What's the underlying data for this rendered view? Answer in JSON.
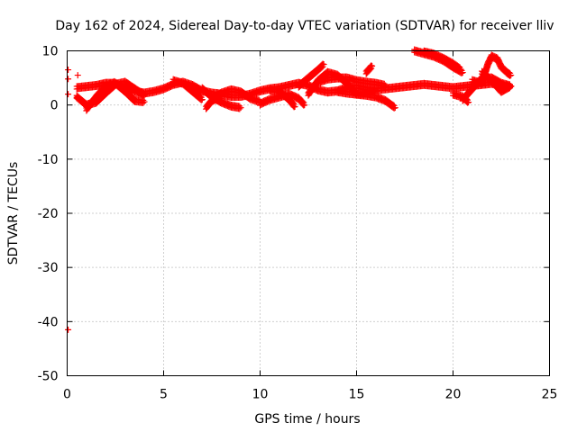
{
  "chart_data": {
    "type": "scatter",
    "title": "Day 162 of 2024, Sidereal Day-to-day VTEC variation (SDTVAR) for receiver lliv",
    "xlabel": "GPS time / hours",
    "ylabel": "SDTVAR / TECUs",
    "xlim": [
      0,
      25
    ],
    "ylim": [
      -50,
      10
    ],
    "xticks": [
      "0",
      "5",
      "10",
      "15",
      "20",
      "25"
    ],
    "yticks": [
      "10",
      "0",
      "-10",
      "-20",
      "-30",
      "-40",
      "-50"
    ],
    "grid": true,
    "marker": "+",
    "color": "#ff0000",
    "series": [
      {
        "isolated_points": [
          [
            0.05,
            6.5
          ],
          [
            0.05,
            4.8
          ],
          [
            0.05,
            2.0
          ],
          [
            0.55,
            5.5
          ],
          [
            0.5,
            1.4
          ],
          [
            0.05,
            -41.5
          ]
        ]
      },
      {
        "tracks": [
          [
            [
              0.5,
              3.2
            ],
            [
              1.0,
              3.4
            ],
            [
              1.5,
              3.6
            ],
            [
              2.0,
              4.0
            ],
            [
              2.5,
              4.0
            ],
            [
              3.0,
              3.2
            ],
            [
              3.5,
              2.5
            ],
            [
              4.0,
              2.2
            ],
            [
              4.5,
              2.5
            ],
            [
              5.0,
              3.0
            ],
            [
              5.5,
              3.8
            ],
            [
              6.0,
              4.2
            ],
            [
              6.5,
              3.6
            ],
            [
              7.0,
              2.6
            ],
            [
              7.5,
              2.2
            ],
            [
              8.0,
              2.0
            ],
            [
              8.5,
              1.6
            ],
            [
              9.0,
              1.6
            ],
            [
              9.5,
              2.0
            ],
            [
              10.0,
              2.6
            ],
            [
              10.5,
              3.0
            ],
            [
              11.0,
              3.2
            ],
            [
              11.5,
              3.6
            ],
            [
              12.0,
              4.0
            ],
            [
              12.5,
              3.6
            ],
            [
              13.0,
              2.8
            ],
            [
              13.5,
              2.4
            ],
            [
              14.0,
              2.6
            ],
            [
              14.5,
              3.2
            ],
            [
              15.0,
              3.4
            ],
            [
              15.5,
              3.0
            ],
            [
              16.0,
              2.8
            ],
            [
              16.5,
              3.0
            ],
            [
              17.0,
              3.2
            ],
            [
              17.5,
              3.4
            ],
            [
              18.0,
              3.6
            ],
            [
              18.5,
              3.8
            ],
            [
              19.0,
              3.6
            ],
            [
              19.5,
              3.4
            ],
            [
              20.0,
              3.2
            ],
            [
              20.5,
              3.4
            ],
            [
              21.0,
              3.6
            ],
            [
              21.5,
              3.8
            ],
            [
              22.0,
              4.0
            ],
            [
              22.5,
              3.6
            ],
            [
              23.0,
              3.4
            ]
          ],
          [
            [
              0.5,
              1.5
            ],
            [
              1.0,
              0.0
            ],
            [
              1.5,
              0.5
            ],
            [
              2.0,
              2.2
            ],
            [
              2.5,
              3.8
            ],
            [
              3.0,
              4.2
            ],
            [
              3.5,
              3.0
            ],
            [
              4.0,
              1.8
            ]
          ],
          [
            [
              1.0,
              -0.8
            ],
            [
              1.5,
              1.5
            ],
            [
              2.0,
              3.5
            ],
            [
              2.5,
              4.2
            ]
          ],
          [
            [
              2.5,
              4.0
            ],
            [
              3.0,
              2.5
            ],
            [
              3.5,
              0.8
            ],
            [
              4.0,
              0.6
            ]
          ],
          [
            [
              5.5,
              4.5
            ],
            [
              6.0,
              4.0
            ],
            [
              6.5,
              2.5
            ],
            [
              7.0,
              1.0
            ]
          ],
          [
            [
              7.0,
              3.0
            ],
            [
              7.5,
              1.5
            ],
            [
              8.0,
              0.5
            ],
            [
              8.5,
              -0.2
            ],
            [
              9.0,
              -0.5
            ]
          ],
          [
            [
              7.5,
              1.2
            ],
            [
              8.0,
              2.2
            ],
            [
              8.5,
              2.8
            ],
            [
              9.0,
              2.4
            ],
            [
              9.5,
              1.2
            ],
            [
              10.0,
              0.6
            ]
          ],
          [
            [
              7.2,
              -0.5
            ],
            [
              7.5,
              0.8
            ],
            [
              8.0,
              1.5
            ]
          ],
          [
            [
              10.0,
              0.2
            ],
            [
              10.5,
              1.0
            ],
            [
              11.0,
              1.5
            ],
            [
              11.5,
              2.0
            ],
            [
              12.0,
              1.2
            ],
            [
              12.3,
              0.0
            ]
          ],
          [
            [
              10.5,
              2.8
            ],
            [
              11.0,
              2.5
            ],
            [
              11.5,
              1.0
            ],
            [
              11.8,
              -0.3
            ]
          ],
          [
            [
              12.0,
              3.5
            ],
            [
              12.5,
              5.0
            ],
            [
              13.0,
              6.5
            ],
            [
              13.3,
              7.5
            ]
          ],
          [
            [
              12.5,
              2.0
            ],
            [
              13.0,
              4.5
            ],
            [
              13.5,
              6.0
            ],
            [
              14.0,
              5.5
            ],
            [
              14.5,
              4.0
            ],
            [
              15.0,
              2.0
            ],
            [
              15.5,
              1.8
            ],
            [
              16.0,
              1.5
            ],
            [
              16.5,
              0.8
            ],
            [
              17.0,
              -0.5
            ]
          ],
          [
            [
              13.0,
              4.2
            ],
            [
              13.5,
              4.8
            ],
            [
              14.0,
              5.0
            ],
            [
              14.5,
              5.0
            ],
            [
              15.0,
              4.5
            ],
            [
              15.5,
              4.2
            ],
            [
              16.0,
              4.0
            ],
            [
              16.5,
              3.6
            ]
          ],
          [
            [
              14.0,
              2.5
            ],
            [
              14.5,
              2.2
            ],
            [
              15.0,
              2.0
            ],
            [
              15.5,
              2.2
            ],
            [
              16.0,
              2.6
            ]
          ],
          [
            [
              15.5,
              6.0
            ],
            [
              15.8,
              7.2
            ]
          ],
          [
            [
              18.0,
              10.0
            ],
            [
              18.5,
              9.5
            ],
            [
              19.0,
              9.0
            ],
            [
              19.5,
              8.2
            ],
            [
              20.0,
              7.0
            ],
            [
              20.5,
              6.0
            ]
          ],
          [
            [
              18.5,
              9.8
            ],
            [
              19.0,
              9.4
            ],
            [
              19.5,
              8.6
            ],
            [
              20.0,
              7.6
            ],
            [
              20.4,
              6.6
            ]
          ],
          [
            [
              20.0,
              2.0
            ],
            [
              20.5,
              1.5
            ],
            [
              20.8,
              0.5
            ]
          ],
          [
            [
              20.5,
              1.0
            ],
            [
              21.0,
              3.0
            ],
            [
              21.5,
              5.0
            ],
            [
              22.0,
              5.0
            ],
            [
              22.5,
              4.0
            ],
            [
              23.0,
              3.5
            ]
          ],
          [
            [
              21.0,
              4.5
            ],
            [
              21.5,
              4.0
            ],
            [
              21.8,
              7.5
            ],
            [
              22.0,
              9.0
            ],
            [
              22.3,
              8.5
            ],
            [
              22.5,
              7.0
            ],
            [
              22.8,
              6.0
            ],
            [
              23.0,
              5.5
            ]
          ],
          [
            [
              21.5,
              6.0
            ],
            [
              22.0,
              4.5
            ],
            [
              22.5,
              2.5
            ],
            [
              23.0,
              3.5
            ]
          ]
        ]
      }
    ]
  }
}
